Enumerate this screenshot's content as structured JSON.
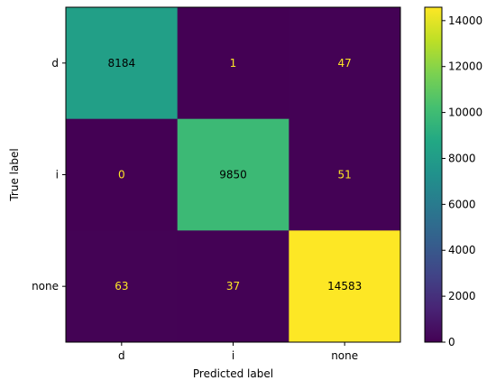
{
  "chart_data": {
    "type": "heatmap",
    "title": "",
    "xlabel": "Predicted label",
    "ylabel": "True label",
    "x_categories": [
      "d",
      "i",
      "none"
    ],
    "y_categories": [
      "d",
      "i",
      "none"
    ],
    "values": [
      [
        8184,
        1,
        47
      ],
      [
        0,
        9850,
        51
      ],
      [
        63,
        37,
        14583
      ]
    ],
    "colormap": "viridis",
    "color_range": [
      0,
      14583
    ],
    "colorbar_ticks": [
      0,
      2000,
      4000,
      6000,
      8000,
      10000,
      12000,
      14000
    ],
    "text_color_dark": "#000000",
    "text_color_light": "#fde725"
  }
}
